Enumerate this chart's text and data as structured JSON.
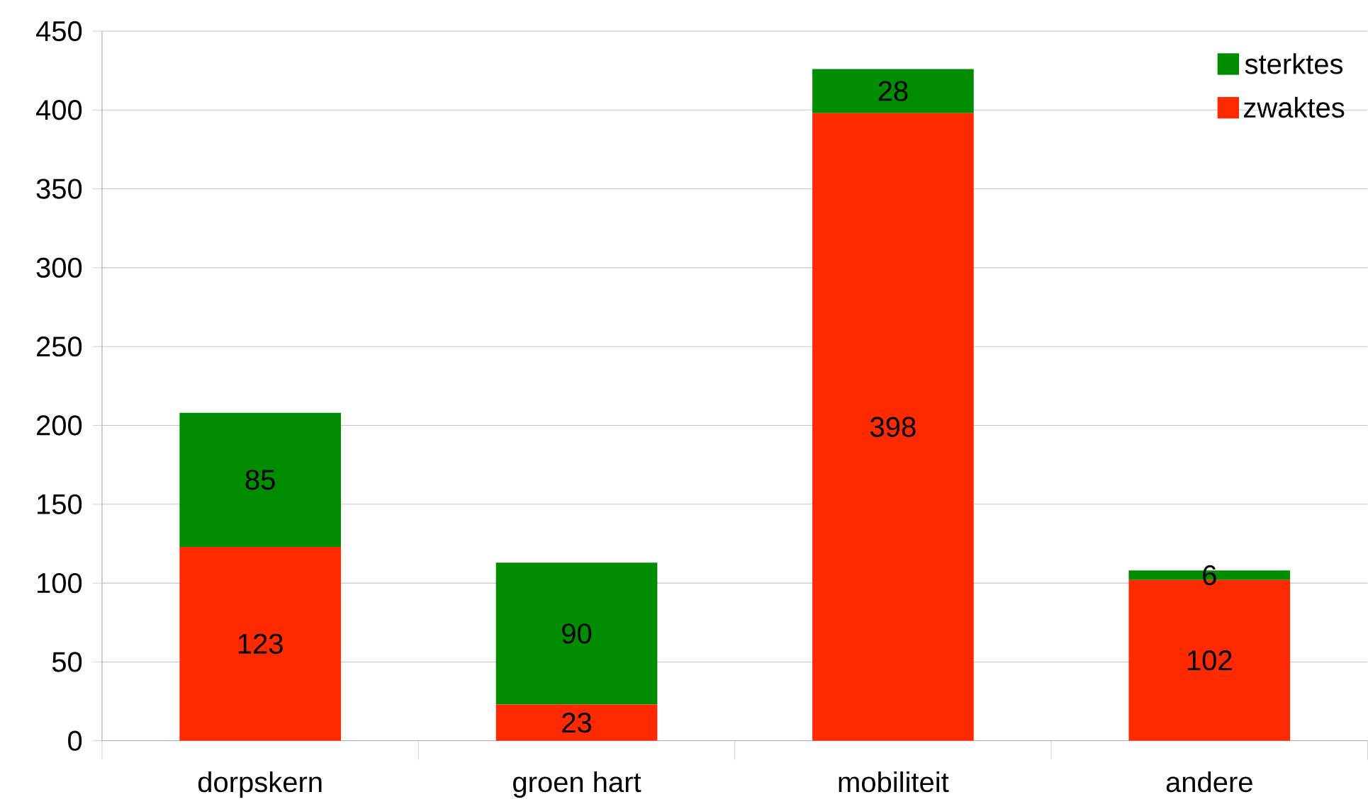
{
  "chart_data": {
    "type": "bar",
    "stacked": true,
    "categories": [
      "dorpskern",
      "groen hart",
      "mobiliteit",
      "andere"
    ],
    "series": [
      {
        "name": "zwaktes",
        "color": "#ff2a00",
        "values": [
          123,
          23,
          398,
          102
        ]
      },
      {
        "name": "sterktes",
        "color": "#008c00",
        "values": [
          85,
          90,
          28,
          6
        ]
      }
    ],
    "ylim": [
      0,
      450
    ],
    "yticks": [
      0,
      50,
      100,
      150,
      200,
      250,
      300,
      350,
      400,
      450
    ],
    "grid": "y",
    "legend": "top right",
    "data_labels": true
  }
}
